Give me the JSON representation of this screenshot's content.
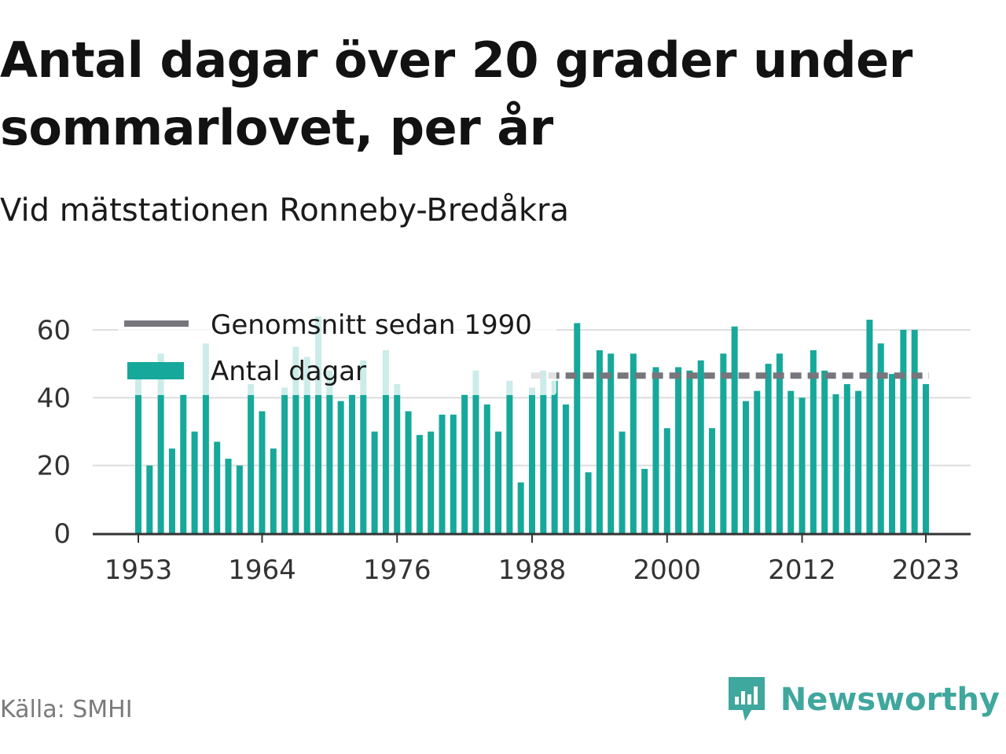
{
  "header": {
    "title": "Antal dagar över 20 grader under sommarlovet, per år",
    "subtitle": "Vid mätstationen Ronneby-Bredåkra"
  },
  "footer": {
    "source": "Källa: SMHI",
    "brand": "Newsworthy"
  },
  "colors": {
    "bars": "#16a89a",
    "average": "#77767d",
    "grid": "#dddddd",
    "axis": "#333333",
    "brand": "#3fa79d"
  },
  "chart_data": {
    "type": "bar",
    "title": "Antal dagar över 20 grader under sommarlovet, per år",
    "subtitle": "Vid mätstationen Ronneby-Bredåkra",
    "x_ticks": [
      "1953",
      "1964",
      "1976",
      "1988",
      "2000",
      "2012",
      "2023"
    ],
    "y_ticks": [
      "0",
      "20",
      "40",
      "60"
    ],
    "ylim": [
      0,
      60
    ],
    "xlim": [
      1953,
      2023
    ],
    "grid": true,
    "legend_position": "top-left",
    "legend": [
      "Genomsnitt sedan 1990",
      "Antal dagar"
    ],
    "series": [
      {
        "name": "Antal dagar",
        "type": "bar",
        "x": [
          1953,
          1954,
          1955,
          1956,
          1957,
          1958,
          1959,
          1960,
          1961,
          1962,
          1963,
          1964,
          1965,
          1966,
          1967,
          1968,
          1969,
          1970,
          1971,
          1972,
          1973,
          1974,
          1975,
          1976,
          1977,
          1978,
          1979,
          1980,
          1981,
          1982,
          1983,
          1984,
          1985,
          1986,
          1987,
          1988,
          1989,
          1990,
          1991,
          1992,
          1993,
          1994,
          1995,
          1996,
          1997,
          1998,
          1999,
          2000,
          2001,
          2002,
          2003,
          2004,
          2005,
          2006,
          2007,
          2008,
          2009,
          2010,
          2011,
          2012,
          2013,
          2014,
          2015,
          2016,
          2017,
          2018,
          2019,
          2020,
          2021,
          2022,
          2023
        ],
        "values": [
          48,
          20,
          53,
          25,
          41,
          30,
          56,
          27,
          22,
          20,
          44,
          36,
          25,
          43,
          55,
          52,
          64,
          48,
          39,
          41,
          51,
          30,
          54,
          44,
          36,
          29,
          30,
          35,
          35,
          41,
          48,
          38,
          30,
          45,
          15,
          43,
          48,
          45,
          38,
          62,
          18,
          54,
          53,
          30,
          53,
          19,
          49,
          31,
          49,
          48,
          51,
          31,
          53,
          61,
          39,
          42,
          50,
          53,
          42,
          40,
          54,
          48,
          41,
          44,
          42,
          63,
          56,
          47,
          60,
          60,
          44
        ]
      },
      {
        "name": "Genomsnitt sedan 1990",
        "type": "line",
        "x": [
          1990,
          2023
        ],
        "values": [
          46.5,
          46.5
        ]
      }
    ]
  }
}
